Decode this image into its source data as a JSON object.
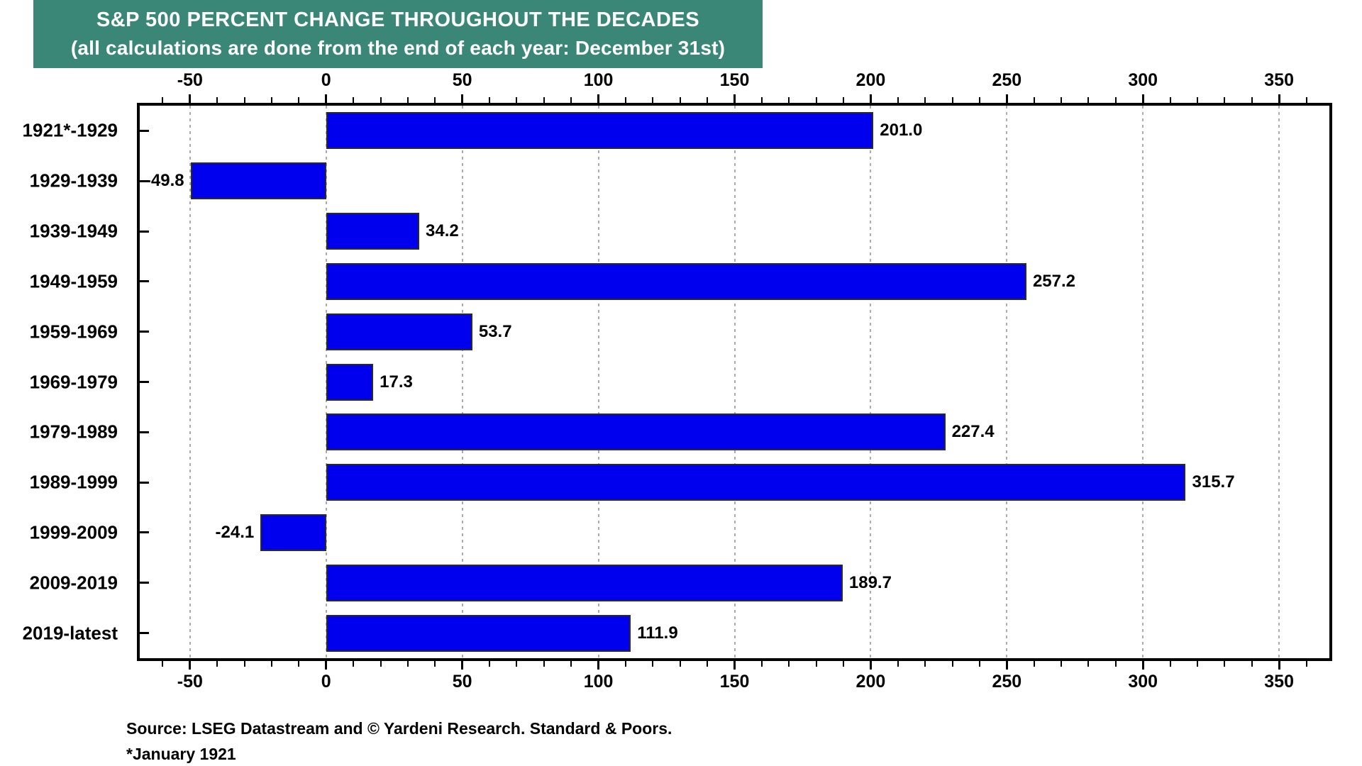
{
  "title": {
    "line1": "S&P 500 PERCENT CHANGE THROUGHOUT THE DECADES",
    "line2": "(all calculations are done from the end of each year: December 31st)",
    "banner_bg": "#3A8777",
    "banner_text_color": "#FFFFFF"
  },
  "chart_data": {
    "type": "bar",
    "orientation": "horizontal",
    "title": "S&P 500 PERCENT CHANGE THROUGHOUT THE DECADES",
    "subtitle": "(all calculations are done from the end of each year: December 31st)",
    "categories": [
      "1921*-1929",
      "1929-1939",
      "1939-1949",
      "1949-1959",
      "1959-1969",
      "1969-1979",
      "1979-1989",
      "1989-1999",
      "1999-2009",
      "2009-2019",
      "2019-latest"
    ],
    "values": [
      201.0,
      -49.8,
      34.2,
      257.2,
      53.7,
      17.3,
      227.4,
      315.7,
      -24.1,
      189.7,
      111.9
    ],
    "value_labels": [
      "201.0",
      "-49.8",
      "34.2",
      "257.2",
      "53.7",
      "17.3",
      "227.4",
      "315.7",
      "-24.1",
      "189.7",
      "111.9"
    ],
    "xlim": [
      -69.5,
      369.5
    ],
    "x_major_ticks": [
      -50,
      0,
      50,
      100,
      150,
      200,
      250,
      300,
      350
    ],
    "x_minor_tick_step": 10,
    "grid": "vertical dotted lines at major ticks",
    "bar_color": "#0000EE",
    "bar_border_color": "#2A2A2A",
    "grid_color": "#ABABAB",
    "axis_labels_top": true,
    "axis_labels_bottom": true
  },
  "footer": {
    "source": "Source: LSEG Datastream and © Yardeni Research. Standard & Poors.",
    "footnote": "*January 1921"
  }
}
